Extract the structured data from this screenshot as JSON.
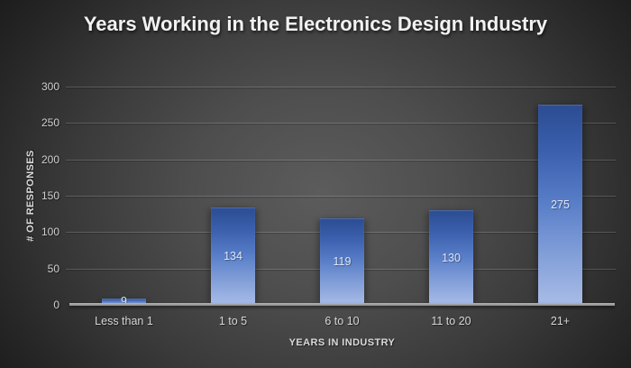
{
  "chart_data": {
    "type": "bar",
    "title": "Years Working in the Electronics Design Industry",
    "categories": [
      "Less than 1",
      "1 to 5",
      "6 to 10",
      "11 to 20",
      "21+"
    ],
    "values": [
      9,
      134,
      119,
      130,
      275
    ],
    "xlabel": "YEARS IN INDUSTRY",
    "ylabel": "# OF RESPONSES",
    "ylim": [
      0,
      300
    ],
    "yticks": [
      0,
      50,
      100,
      150,
      200,
      250,
      300
    ],
    "grid": "horizontal-only",
    "legend": "none",
    "data_labels": "inside-center",
    "colors": {
      "background_center": "#5c5c5c",
      "background_edge": "#1c1c1c",
      "bar_gradient_top": "#2b4c92",
      "bar_gradient_bottom": "#a8bce7",
      "gridline": "rgba(255,255,255,0.18)",
      "axis_line": "#a0a0a0",
      "tick_text": "#cfcfcf",
      "title_text": "#f2f2f2",
      "data_label_text": "#dde6f3"
    }
  }
}
